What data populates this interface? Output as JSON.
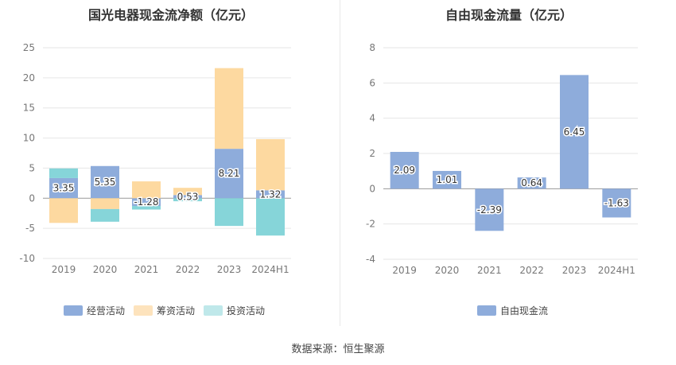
{
  "source": "数据来源：恒生聚源",
  "chart_data": [
    {
      "type": "bar",
      "stacked": true,
      "title": "国光电器现金流净额（亿元）",
      "categories": [
        "2019",
        "2020",
        "2021",
        "2022",
        "2023",
        "2024H1"
      ],
      "ylim": [
        -10,
        25
      ],
      "yticks": [
        -10,
        -5,
        0,
        5,
        10,
        15,
        20,
        25
      ],
      "grid": true,
      "legend_position": "bottom",
      "series": [
        {
          "name": "经营活动",
          "color": "#8eacdb",
          "values": [
            3.35,
            5.35,
            -1.28,
            0.53,
            8.21,
            1.32
          ]
        },
        {
          "name": "筹资活动",
          "color": "#fdd9a0",
          "values": [
            -4.1,
            -1.8,
            2.8,
            1.2,
            13.4,
            8.5
          ]
        },
        {
          "name": "投资活动",
          "color": "#86d5d9",
          "values": [
            1.6,
            -2.1,
            -0.6,
            -0.5,
            -4.6,
            -6.2
          ]
        }
      ],
      "data_labels": [
        "3.35",
        "5.35",
        "-1.28",
        "0.53",
        "8.21",
        "1.32"
      ],
      "legend_swatch_colors": [
        "#8eacdb",
        "#fde3bd",
        "#bfe8ea"
      ]
    },
    {
      "type": "bar",
      "title": "自由现金流量（亿元）",
      "categories": [
        "2019",
        "2020",
        "2021",
        "2022",
        "2023",
        "2024H1"
      ],
      "ylim": [
        -4,
        8
      ],
      "yticks": [
        -4,
        -2,
        0,
        2,
        4,
        6,
        8
      ],
      "grid": true,
      "legend_position": "bottom",
      "series": [
        {
          "name": "自由现金流",
          "color": "#8eacdb",
          "values": [
            2.09,
            1.01,
            -2.39,
            0.64,
            6.45,
            -1.63
          ]
        }
      ],
      "data_labels": [
        "2.09",
        "1.01",
        "-2.39",
        "0.64",
        "6.45",
        "-1.63"
      ]
    }
  ]
}
